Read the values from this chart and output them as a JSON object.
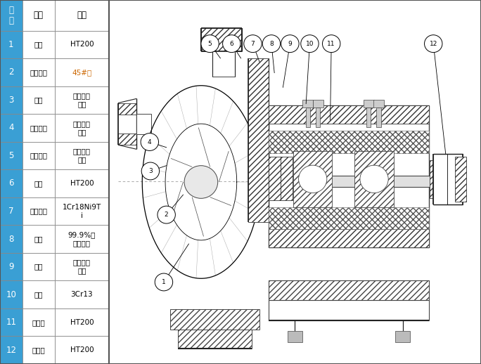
{
  "bg_color": "#ffffff",
  "table_blue": "#3a9fd4",
  "border_dark": "#555555",
  "border_med": "#888888",
  "white": "#ffffff",
  "black": "#000000",
  "orange": "#cc6600",
  "header_col0": "序\n号",
  "header_col1": "名称",
  "header_col2": "材质",
  "rows": [
    {
      "num": "1",
      "name": "泵体",
      "mat": "HT200",
      "orange": false
    },
    {
      "num": "2",
      "name": "叶轮骨架",
      "mat": "45#钓",
      "orange": true
    },
    {
      "num": "3",
      "name": "叶轮",
      "mat": "聚全氟乙\n丙烯",
      "orange": false
    },
    {
      "num": "4",
      "name": "泵体衆里",
      "mat": "聚全氟乙\n丙烯",
      "orange": false
    },
    {
      "num": "5",
      "name": "泵盖衆里",
      "mat": "聚全氟乙\n丙烯",
      "orange": false
    },
    {
      "num": "6",
      "name": "泵盖",
      "mat": "HT200",
      "orange": false
    },
    {
      "num": "7",
      "name": "机封压盖",
      "mat": "1Cr18Ni9T\ni",
      "orange": false
    },
    {
      "num": "8",
      "name": "静环",
      "mat": "99.9%氧\n化铝陶瓷",
      "orange": false
    },
    {
      "num": "9",
      "name": "动环",
      "mat": "填充四氟\n乙烯",
      "orange": false
    },
    {
      "num": "10",
      "name": "泵轴",
      "mat": "3Cr13",
      "orange": false
    },
    {
      "num": "11",
      "name": "轴承体",
      "mat": "HT200",
      "orange": false
    },
    {
      "num": "12",
      "name": "联轴器",
      "mat": "HT200",
      "orange": false
    }
  ],
  "fig_width": 6.84,
  "fig_height": 5.18,
  "dpi": 100
}
